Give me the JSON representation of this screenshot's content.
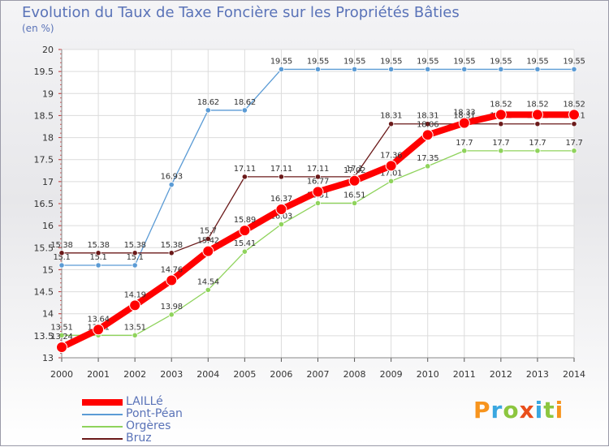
{
  "title": "Evolution du Taux de Taxe Foncière sur les Propriétés Bâties",
  "unit_label": "(en %)",
  "logo_text": "Proxiti",
  "logo_colors": [
    "#f7941d",
    "#3aa7e0",
    "#8cc63f",
    "#e94e1b",
    "#3aa7e0",
    "#8cc63f",
    "#f7941d"
  ],
  "chart_data": {
    "type": "line",
    "title": "Evolution du Taux de Taxe Foncière sur les Propriétés Bâties",
    "ylabel": "(en %)",
    "xlabel": "",
    "x": [
      2000,
      2001,
      2002,
      2003,
      2004,
      2005,
      2006,
      2007,
      2008,
      2009,
      2010,
      2011,
      2012,
      2013,
      2014
    ],
    "ylim": [
      13,
      20
    ],
    "yticks": [
      13,
      13.5,
      14,
      14.5,
      15,
      15.5,
      16,
      16.5,
      17,
      17.5,
      18,
      18.5,
      19,
      19.5,
      20
    ],
    "legend_position": "bottom-left",
    "series": [
      {
        "name": "Pont-Péan",
        "color": "#5b9bd5",
        "values": [
          15.1,
          15.1,
          15.1,
          16.93,
          18.62,
          18.62,
          19.55,
          19.55,
          19.55,
          19.55,
          19.55,
          19.55,
          19.55,
          19.55,
          19.55
        ],
        "labels": [
          "15.1",
          "15.1",
          "15.1",
          "16.93",
          "18.62",
          "18.62",
          "19.55",
          "19.55",
          "19.55",
          "19.55",
          "19.55",
          "19.55",
          "19.55",
          "19.55",
          "19.55"
        ]
      },
      {
        "name": "Orgères",
        "color": "#8fd35c",
        "values": [
          13.51,
          13.51,
          13.51,
          13.98,
          14.54,
          15.41,
          16.03,
          16.51,
          16.51,
          17.01,
          17.35,
          17.7,
          17.7,
          17.7,
          17.7
        ],
        "labels": [
          "13.51",
          "13.51",
          "13.51",
          "13.98",
          "14.54",
          "15.41",
          "16.03",
          "16.51",
          "16.51",
          "17.01",
          "17.35",
          "17.7",
          "17.7",
          "17.7",
          "17.7"
        ]
      },
      {
        "name": "Bruz",
        "color": "#6b1a1a",
        "values": [
          15.38,
          15.38,
          15.38,
          15.38,
          15.7,
          17.11,
          17.11,
          17.11,
          17.11,
          18.31,
          18.31,
          18.31,
          18.31,
          18.31,
          18.31
        ],
        "labels": [
          "15.38",
          "15.38",
          "15.38",
          "15.38",
          "15.7",
          "17.11",
          "17.11",
          "17.11",
          "17.1",
          "18.31",
          "18.31",
          "18.31",
          "18.31",
          "18.31",
          "18.31"
        ]
      },
      {
        "name": "LAILLé",
        "color": "#ff0000",
        "values": [
          13.24,
          13.64,
          14.19,
          14.76,
          15.42,
          15.89,
          16.37,
          16.77,
          17.02,
          17.36,
          18.06,
          18.33,
          18.52,
          18.52,
          18.52
        ],
        "labels": [
          "13.24",
          "13.64",
          "14.19",
          "14.76",
          "15.42",
          "15.89",
          "16.37",
          "16.77",
          "17.02",
          "17.36",
          "18.06",
          "18.33",
          "18.52",
          "18.52",
          "18.52"
        ]
      }
    ],
    "legend": [
      "LAILLé",
      "Pont-Péan",
      "Orgères",
      "Bruz"
    ]
  }
}
